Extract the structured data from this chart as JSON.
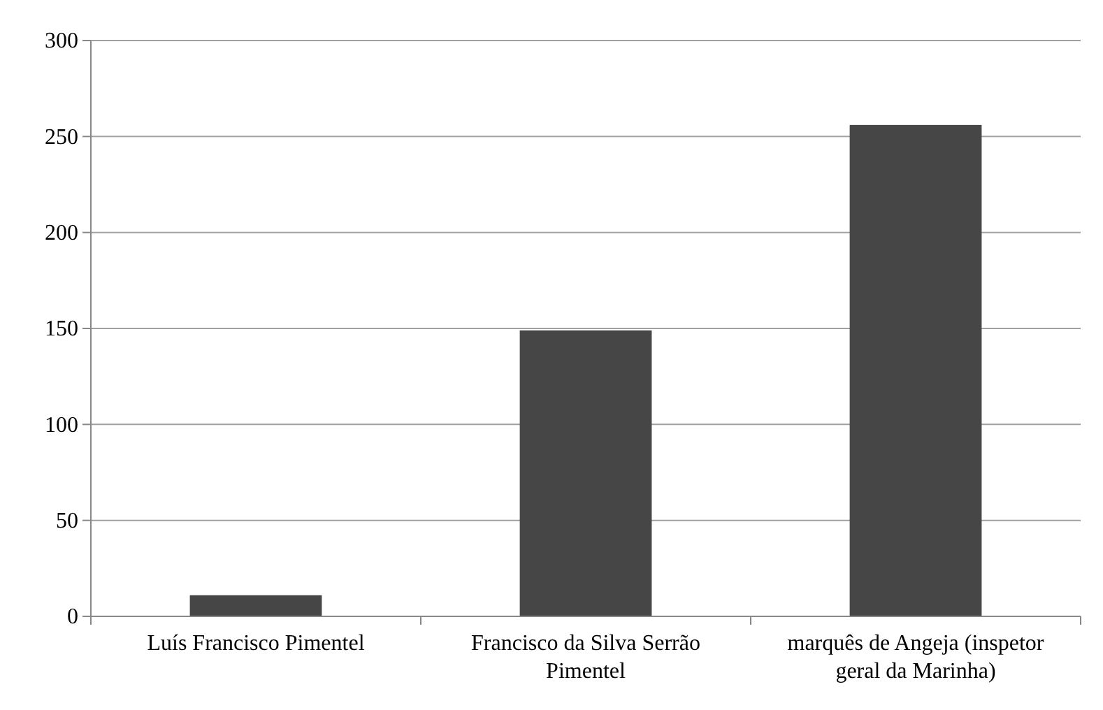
{
  "chart_data": {
    "type": "bar",
    "categories": [
      "Luís Francisco Pimentel",
      "Francisco da Silva Serrão Pimentel",
      "marquês de Angeja (inspetor geral da Marinha)"
    ],
    "values": [
      11,
      149,
      256
    ],
    "color": "#464646",
    "ylim": [
      0,
      300
    ],
    "yticks": [
      0,
      50,
      100,
      150,
      200,
      250,
      300
    ],
    "grid": "y"
  }
}
